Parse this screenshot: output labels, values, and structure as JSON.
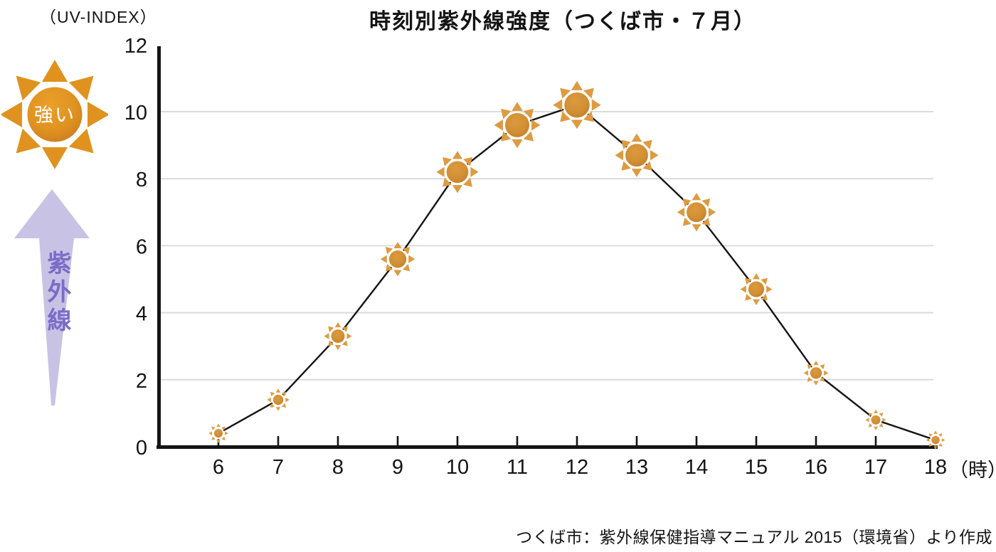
{
  "header": {
    "title": "時刻別紫外線強度（つくば市・７月）"
  },
  "annotations": {
    "strong_label": "強い",
    "uv_axis_label": "紫外線"
  },
  "source_note": "つくば市：紫外線保健指導マニュアル 2015（環境省）より作成",
  "colors": {
    "axis": "#141414",
    "line": "#141414",
    "grid": "#DBDBDB",
    "sun_ray": "#DD9B41",
    "sun_core_light": "#DC993E",
    "sun_core_mid": "#D29035",
    "sun_core_dark": "#BE7B27",
    "big_sun_ray": "#E0921E",
    "big_sun_core_light": "#EB9F2B",
    "big_sun_core_mid": "#E09320",
    "big_sun_core_dark": "#C7791E",
    "arrow_fill": "#C8C3E4",
    "uv_text": "#7B6CC9"
  },
  "chart_data": {
    "type": "line",
    "title": "時刻別紫外線強度（つくば市・７月）",
    "x": [
      6,
      7,
      8,
      9,
      10,
      11,
      12,
      13,
      14,
      15,
      16,
      17,
      18
    ],
    "values": [
      0.4,
      1.4,
      3.3,
      5.6,
      8.2,
      9.6,
      10.2,
      8.7,
      7.0,
      4.7,
      2.2,
      0.8,
      0.2
    ],
    "series_name": "UV-INDEX",
    "xlabel": "時",
    "ylabel": "UV-INDEX",
    "y_axis_unit_label": "（UV-INDEX）",
    "x_axis_unit_label": "（時）",
    "ylim": [
      0,
      12
    ],
    "ytick_step": 2,
    "grid": true,
    "gridlines_at": [
      2,
      4,
      6,
      8,
      10
    ],
    "legend_position": "none",
    "marker": "sun-icon",
    "marker_note": "sun marker size scales with UV value; peak at 12時 = 10.2"
  }
}
